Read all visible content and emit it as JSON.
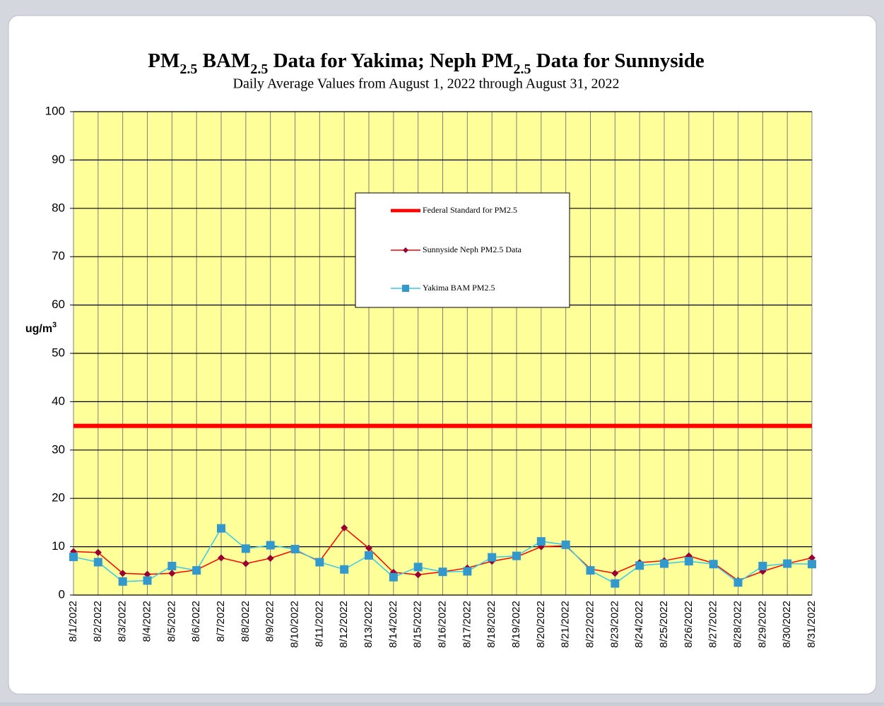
{
  "chart_data": {
    "type": "line",
    "title_parts": [
      "PM",
      "2.5",
      " BAM",
      "2.5",
      " Data for Yakima; Neph PM",
      "2.5",
      " Data for Sunnyside"
    ],
    "subtitle": "Daily  Average  Values  from  August  1, 2022 through  August  31, 2022",
    "y_label_parts": [
      "ug/m",
      "3"
    ],
    "categories": [
      "8/1/2022",
      "8/2/2022",
      "8/3/2022",
      "8/4/2022",
      "8/5/2022",
      "8/6/2022",
      "8/7/2022",
      "8/8/2022",
      "8/9/2022",
      "8/10/2022",
      "8/11/2022",
      "8/12/2022",
      "8/13/2022",
      "8/14/2022",
      "8/15/2022",
      "8/16/2022",
      "8/17/2022",
      "8/18/2022",
      "8/19/2022",
      "8/20/2022",
      "8/21/2022",
      "8/22/2022",
      "8/23/2022",
      "8/24/2022",
      "8/25/2022",
      "8/26/2022",
      "8/27/2022",
      "8/28/2022",
      "8/29/2022",
      "8/30/2022",
      "8/31/2022"
    ],
    "series": [
      {
        "name": "Federal Standard for PM2.5",
        "color": "#ff0000",
        "values": [
          35,
          35,
          35,
          35,
          35,
          35,
          35,
          35,
          35,
          35,
          35,
          35,
          35,
          35,
          35,
          35,
          35,
          35,
          35,
          35,
          35,
          35,
          35,
          35,
          35,
          35,
          35,
          35,
          35,
          35,
          35
        ]
      },
      {
        "name": "Sunnyside Neph PM2.5 Data",
        "color": "#ff0000",
        "marker_color": "#990033",
        "values": [
          9.0,
          8.8,
          4.5,
          4.3,
          4.5,
          5.2,
          7.7,
          6.5,
          7.6,
          9.3,
          7.0,
          13.9,
          9.7,
          4.7,
          4.2,
          4.8,
          5.6,
          7.0,
          7.9,
          10.0,
          10.2,
          5.4,
          4.5,
          6.7,
          7.1,
          8.1,
          6.6,
          3.0,
          4.9,
          6.5,
          7.7
        ]
      },
      {
        "name": "Yakima BAM PM2.5",
        "color": "#33ccee",
        "marker_color": "#3399cc",
        "values": [
          7.9,
          6.8,
          2.8,
          3.0,
          6.0,
          5.1,
          13.8,
          9.6,
          10.3,
          9.5,
          6.8,
          5.3,
          8.2,
          3.7,
          5.8,
          4.8,
          4.9,
          7.8,
          8.1,
          11.1,
          10.4,
          5.1,
          2.4,
          6.1,
          6.5,
          7.0,
          6.4,
          2.6,
          6.0,
          6.5,
          6.4
        ]
      }
    ],
    "ylim": [
      0,
      100
    ],
    "yticks": [
      0,
      10,
      20,
      30,
      40,
      50,
      60,
      70,
      80,
      90,
      100
    ],
    "grid": true,
    "plot_color": "#ffff99"
  }
}
